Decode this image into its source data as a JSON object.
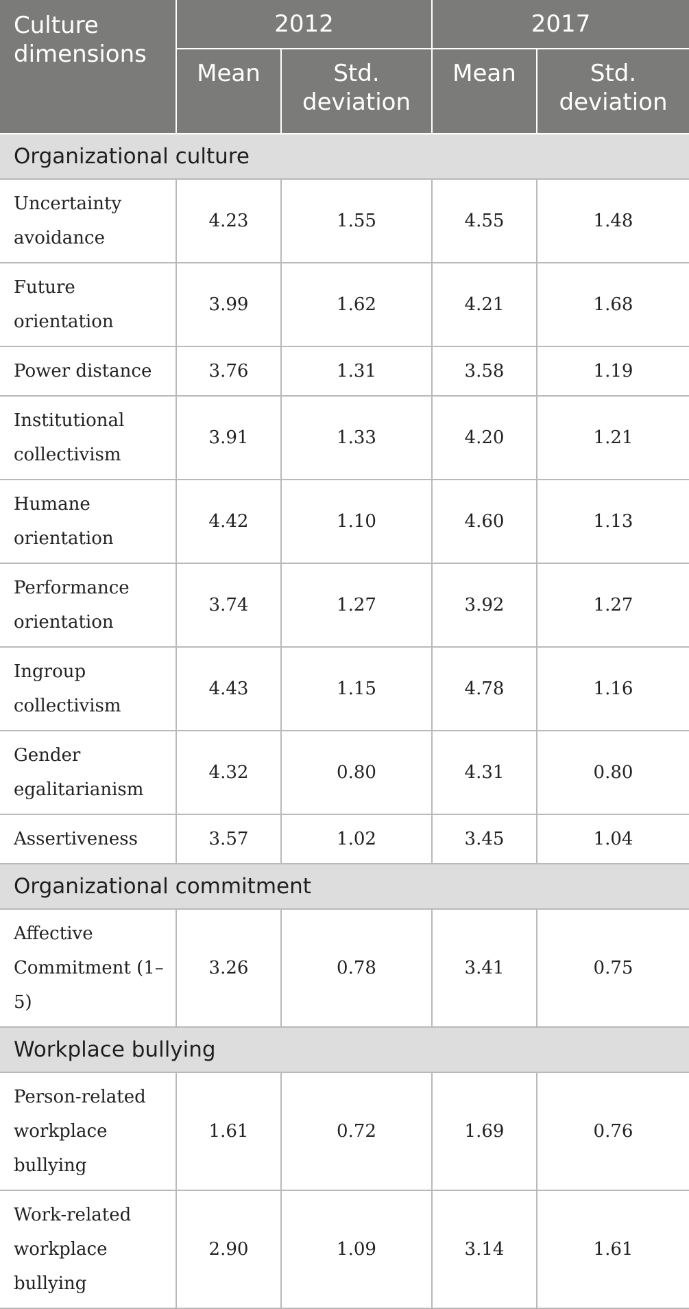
{
  "header": {
    "corner": "Culture dimensions",
    "year1": "2012",
    "year2": "2017",
    "mean_label": "Mean",
    "std_label": "Std. deviation"
  },
  "sections": [
    {
      "title": "Organizational culture",
      "rows": [
        {
          "label": "Uncertainty avoidance",
          "m2012": "4.23",
          "s2012": "1.55",
          "m2017": "4.55",
          "s2017": "1.48"
        },
        {
          "label": "Future orientation",
          "m2012": "3.99",
          "s2012": "1.62",
          "m2017": "4.21",
          "s2017": "1.68"
        },
        {
          "label": "Power distance",
          "m2012": "3.76",
          "s2012": "1.31",
          "m2017": "3.58",
          "s2017": "1.19"
        },
        {
          "label": "Institutional collectivism",
          "m2012": "3.91",
          "s2012": "1.33",
          "m2017": "4.20",
          "s2017": "1.21"
        },
        {
          "label": "Humane orientation",
          "m2012": "4.42",
          "s2012": "1.10",
          "m2017": "4.60",
          "s2017": "1.13"
        },
        {
          "label": "Performance orientation",
          "m2012": "3.74",
          "s2012": "1.27",
          "m2017": "3.92",
          "s2017": "1.27"
        },
        {
          "label": "Ingroup collectivism",
          "m2012": "4.43",
          "s2012": "1.15",
          "m2017": "4.78",
          "s2017": "1.16"
        },
        {
          "label": "Gender egalitarianism",
          "m2012": "4.32",
          "s2012": "0.80",
          "m2017": "4.31",
          "s2017": "0.80"
        },
        {
          "label": "Assertiveness",
          "m2012": "3.57",
          "s2012": "1.02",
          "m2017": "3.45",
          "s2017": "1.04"
        }
      ]
    },
    {
      "title": "Organizational commitment",
      "rows": [
        {
          "label": "Affective Commitment (1–5)",
          "m2012": "3.26",
          "s2012": "0.78",
          "m2017": "3.41",
          "s2017": "0.75"
        }
      ]
    },
    {
      "title": "Workplace bullying",
      "rows": [
        {
          "label": "Person-related workplace bullying",
          "m2012": "1.61",
          "s2012": "0.72",
          "m2017": "1.69",
          "s2017": "0.76"
        },
        {
          "label": "Work-related workplace bullying",
          "m2012": "2.90",
          "s2012": "1.09",
          "m2017": "3.14",
          "s2017": "1.61"
        }
      ]
    }
  ]
}
